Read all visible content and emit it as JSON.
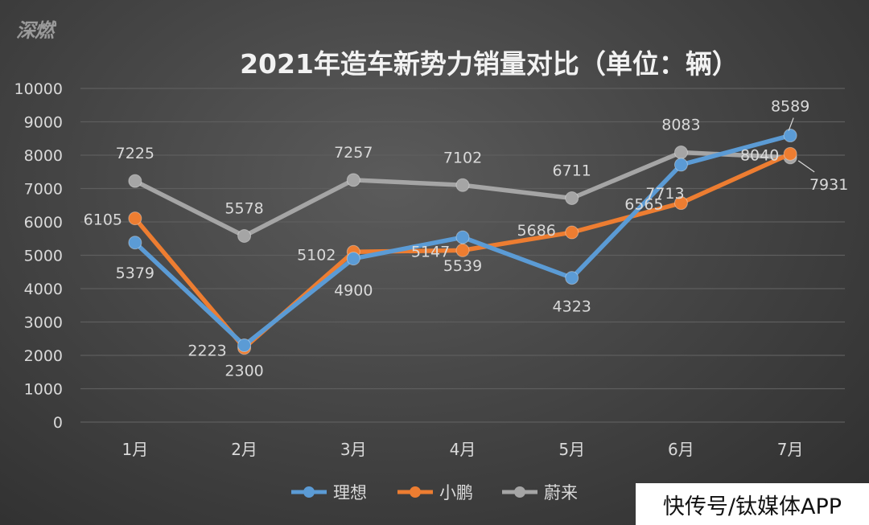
{
  "logo_text": "深燃",
  "watermark": "快传号/钛媒体APP",
  "colors": {
    "lixiang": "#5b9bd5",
    "xiaopeng": "#ed7d31",
    "nio": "#a5a5a5",
    "text": "#d9d9d9",
    "grid": "#5e5e5e"
  },
  "chart_data": {
    "type": "line",
    "title": "2021年造车新势力销量对比（单位：辆）",
    "categories": [
      "1月",
      "2月",
      "3月",
      "4月",
      "5月",
      "6月",
      "7月"
    ],
    "ylim": [
      0,
      10000
    ],
    "yticks": [
      0,
      1000,
      2000,
      3000,
      4000,
      5000,
      6000,
      7000,
      8000,
      9000,
      10000
    ],
    "grid": true,
    "legend_position": "bottom",
    "series": [
      {
        "name": "理想",
        "color": "#5b9bd5",
        "values": [
          5379,
          2300,
          4900,
          5539,
          4323,
          7713,
          8589
        ]
      },
      {
        "name": "小鹏",
        "color": "#ed7d31",
        "values": [
          6105,
          2223,
          5102,
          5147,
          5686,
          6565,
          8040
        ]
      },
      {
        "name": "蔚来",
        "color": "#a5a5a5",
        "values": [
          7225,
          5578,
          7257,
          7102,
          6711,
          8083,
          7931
        ]
      }
    ]
  }
}
